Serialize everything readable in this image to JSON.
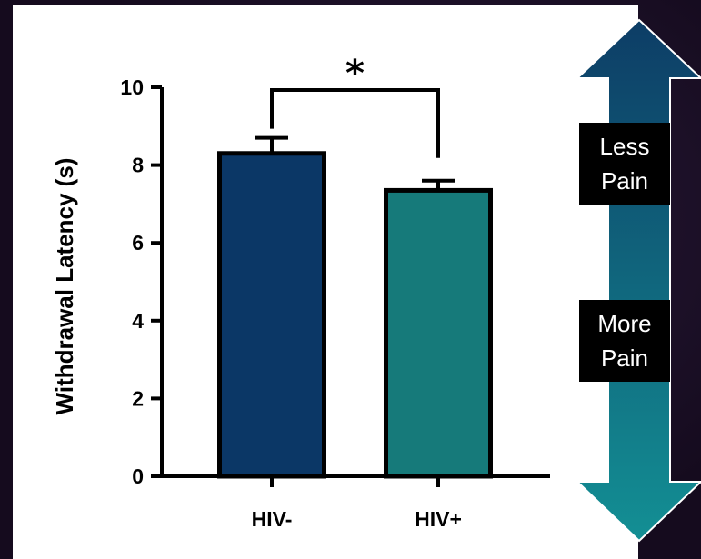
{
  "chart_data": {
    "type": "bar",
    "categories": [
      "HIV-",
      "HIV+"
    ],
    "values": [
      8.3,
      7.35
    ],
    "errors": [
      0.4,
      0.25
    ],
    "ylabel": "Withdrawal Latency (s)",
    "xlabel": "",
    "ylim": [
      0,
      10
    ],
    "yticks": [
      0,
      2,
      4,
      6,
      8,
      10
    ],
    "grid": false,
    "bar_colors": [
      "#0b3766",
      "#167a7a"
    ],
    "significance": {
      "between": [
        "HIV-",
        "HIV+"
      ],
      "label": "*"
    }
  },
  "callouts": {
    "less_pain": {
      "line1": "Less",
      "line2": "Pain"
    },
    "more_pain": {
      "line1": "More",
      "line2": "Pain"
    }
  },
  "arrow_colors": {
    "top": "#0d3d66",
    "bottom": "#138f94"
  }
}
